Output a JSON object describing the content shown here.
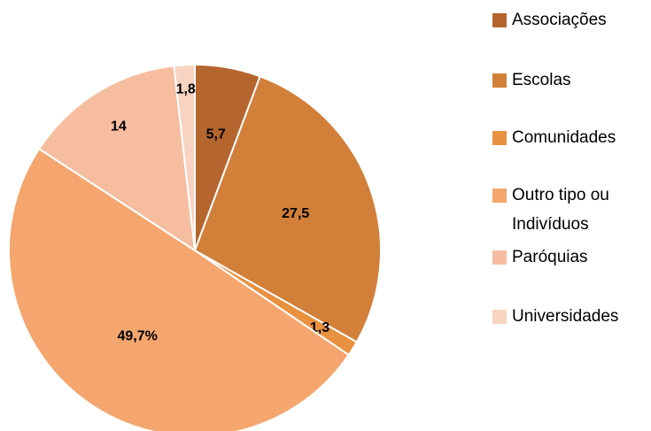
{
  "chart_data": {
    "type": "pie",
    "categories": [
      "Associações",
      "Escolas",
      "Comunidades",
      "Outro tipo ou Indivíduos",
      "Paróquias",
      "Universidades"
    ],
    "values": [
      5.7,
      27.5,
      1.3,
      49.7,
      14,
      1.8
    ],
    "value_labels": [
      "5,7",
      "27,5",
      "1,3",
      "49,7%",
      "14",
      "1,8"
    ],
    "colors": [
      "#b5652e",
      "#d27f3a",
      "#e8913f",
      "#f4a66e",
      "#f6bda0",
      "#f9d3c2"
    ],
    "legend": "right"
  }
}
